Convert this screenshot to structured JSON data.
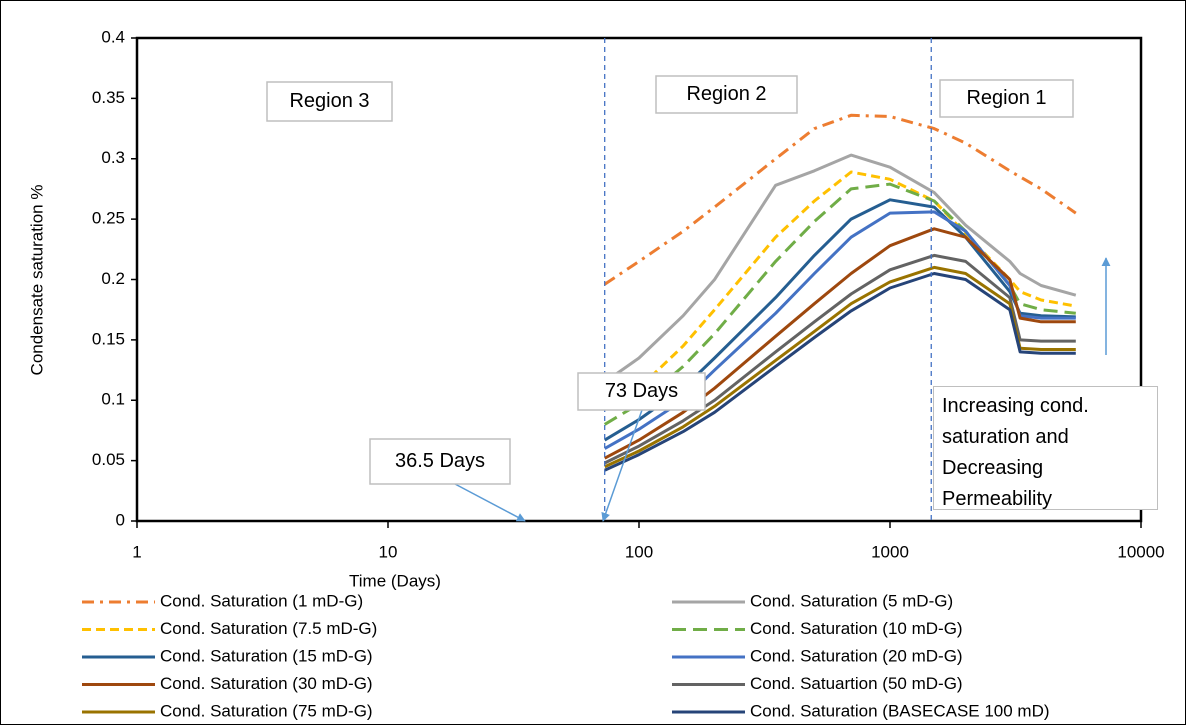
{
  "chart_data": {
    "type": "line",
    "x_label": "Time (Days)",
    "y_label": "Condensate saturation %",
    "x": [
      73,
      100,
      150,
      200,
      350,
      500,
      700,
      1000,
      1500,
      2000,
      3000,
      3300,
      4000,
      5500
    ],
    "xlim": [
      1,
      10000
    ],
    "xticks": [
      1,
      10,
      100,
      1000,
      10000
    ],
    "xscale": "log",
    "ylim": [
      0,
      0.4
    ],
    "yticks": [
      0,
      0.05,
      0.1,
      0.15,
      0.2,
      0.25,
      0.3,
      0.35,
      0.4
    ],
    "vlines": [
      73,
      1460
    ],
    "annotations": [
      {
        "text": "Region 3"
      },
      {
        "text": "Region 2"
      },
      {
        "text": "Region 1"
      },
      {
        "text": "73 Days"
      },
      {
        "text": "36.5 Days"
      },
      {
        "text": "Increasing cond. saturation and Decreasing Permeability"
      }
    ],
    "series": [
      {
        "name": "Cond. Saturation (1 mD-G)",
        "color": "#ed7d31",
        "dash": "dashdot",
        "values": [
          0.196,
          0.215,
          0.24,
          0.26,
          0.3,
          0.325,
          0.336,
          0.335,
          0.325,
          0.313,
          0.29,
          0.285,
          0.275,
          0.255
        ]
      },
      {
        "name": "Cond. Saturation (5 mD-G)",
        "color": "#a5a5a5",
        "dash": "solid",
        "values": [
          0.115,
          0.135,
          0.17,
          0.2,
          0.278,
          0.29,
          0.303,
          0.293,
          0.272,
          0.245,
          0.215,
          0.205,
          0.195,
          0.187
        ]
      },
      {
        "name": "Cond. Saturation (7.5 mD-G)",
        "color": "#ffc000",
        "dash": "dash",
        "values": [
          0.093,
          0.11,
          0.145,
          0.175,
          0.235,
          0.265,
          0.289,
          0.283,
          0.265,
          0.238,
          0.2,
          0.19,
          0.183,
          0.178
        ]
      },
      {
        "name": "Cond. Saturation (10 mD-G)",
        "color": "#70ad47",
        "dash": "longdash",
        "values": [
          0.08,
          0.097,
          0.128,
          0.155,
          0.215,
          0.248,
          0.275,
          0.279,
          0.265,
          0.24,
          0.195,
          0.18,
          0.175,
          0.172
        ]
      },
      {
        "name": "Cond. Saturation (15 mD-G)",
        "color": "#255e91",
        "dash": "solid",
        "values": [
          0.067,
          0.084,
          0.11,
          0.135,
          0.185,
          0.22,
          0.25,
          0.266,
          0.26,
          0.235,
          0.19,
          0.172,
          0.17,
          0.169
        ]
      },
      {
        "name": "Cond. Saturation (20 mD-G)",
        "color": "#4472c4",
        "dash": "solid",
        "values": [
          0.06,
          0.076,
          0.1,
          0.125,
          0.172,
          0.205,
          0.235,
          0.255,
          0.256,
          0.24,
          0.195,
          0.17,
          0.168,
          0.168
        ]
      },
      {
        "name": "Cond. Saturation (30 mD-G)",
        "color": "#9e480e",
        "dash": "solid",
        "values": [
          0.052,
          0.067,
          0.09,
          0.11,
          0.153,
          0.18,
          0.205,
          0.228,
          0.242,
          0.235,
          0.2,
          0.168,
          0.165,
          0.165
        ]
      },
      {
        "name": "Cond. Satuartion (50 mD-G)",
        "color": "#636363",
        "dash": "solid",
        "values": [
          0.048,
          0.062,
          0.083,
          0.1,
          0.14,
          0.165,
          0.188,
          0.208,
          0.22,
          0.215,
          0.185,
          0.15,
          0.149,
          0.149
        ]
      },
      {
        "name": "Cond. Saturation (75 mD-G)",
        "color": "#997300",
        "dash": "solid",
        "values": [
          0.045,
          0.058,
          0.078,
          0.095,
          0.133,
          0.157,
          0.18,
          0.198,
          0.21,
          0.205,
          0.18,
          0.143,
          0.142,
          0.142
        ]
      },
      {
        "name": "Cond. Saturation (BASECASE 100 mD)",
        "color": "#264478",
        "dash": "solid",
        "values": [
          0.042,
          0.055,
          0.074,
          0.09,
          0.128,
          0.152,
          0.174,
          0.193,
          0.205,
          0.2,
          0.175,
          0.14,
          0.139,
          0.139
        ]
      }
    ]
  }
}
